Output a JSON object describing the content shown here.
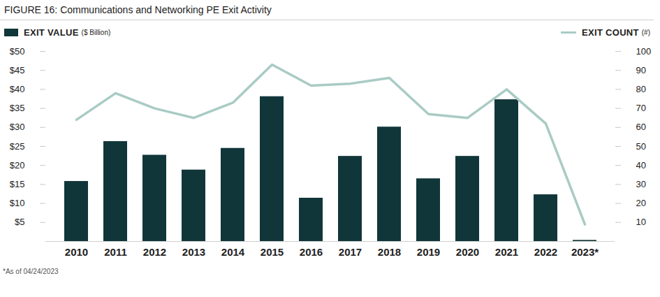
{
  "chart_data": {
    "type": "bar",
    "title": "FIGURE 16: Communications and Networking PE Exit Activity",
    "categories": [
      "2010",
      "2011",
      "2012",
      "2013",
      "2014",
      "2015",
      "2016",
      "2017",
      "2018",
      "2019",
      "2020",
      "2021",
      "2022",
      "2023*"
    ],
    "series": [
      {
        "name": "EXIT VALUE",
        "type": "bar",
        "color": "#11363a",
        "values": [
          15.8,
          26.3,
          22.7,
          18.8,
          24.5,
          38.1,
          11.4,
          22.4,
          30.1,
          16.5,
          22.4,
          37.3,
          12.3,
          0.3
        ]
      },
      {
        "name": "EXIT COUNT",
        "type": "line",
        "color": "#a9cbc4",
        "axis": "y2",
        "values": [
          64,
          78,
          70,
          65,
          73,
          93,
          82,
          83,
          86,
          67,
          65,
          80,
          62,
          9
        ]
      }
    ],
    "ylabel": "($ Billion)",
    "y2label": "(#)",
    "ylim": [
      0,
      50
    ],
    "yticks": [
      {
        "value": 5,
        "label": "$5"
      },
      {
        "value": 10,
        "label": "$10"
      },
      {
        "value": 15,
        "label": "$15"
      },
      {
        "value": 20,
        "label": "$20"
      },
      {
        "value": 25,
        "label": "$25"
      },
      {
        "value": 30,
        "label": "$30"
      },
      {
        "value": 35,
        "label": "$35"
      },
      {
        "value": 40,
        "label": "$40"
      },
      {
        "value": 45,
        "label": "$45"
      },
      {
        "value": 50,
        "label": "$50"
      }
    ],
    "y2lim": [
      0,
      100
    ],
    "y2ticks": [
      10,
      20,
      30,
      40,
      50,
      60,
      70,
      80,
      90,
      100
    ],
    "legend": "top",
    "grid": false,
    "footnote": "*As of 04/24/2023"
  }
}
